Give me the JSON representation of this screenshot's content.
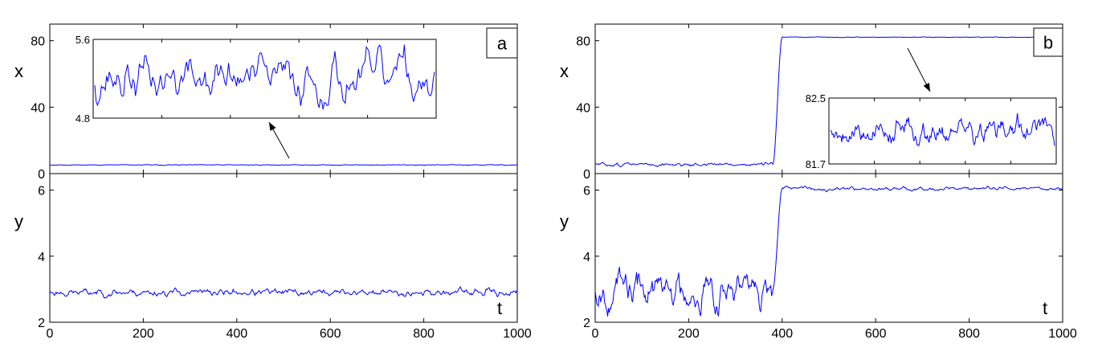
{
  "chart_data": [
    {
      "type": "line",
      "panel": "a",
      "xlim": [
        0,
        1000
      ],
      "x_ticks": [
        0,
        200,
        400,
        600,
        800,
        1000
      ],
      "x_tick_labels": [
        "0",
        "200",
        "400",
        "600",
        "800",
        "1000"
      ],
      "xlabel": "t",
      "grid": false,
      "top": {
        "ylabel": "x",
        "ylim": [
          0,
          90
        ],
        "y_ticks": [
          0,
          40,
          80
        ],
        "y_tick_labels": [
          "0",
          "40",
          "80"
        ],
        "baseline": 5.2,
        "fluctuation": 0.12,
        "seed": 11
      },
      "bottom": {
        "ylabel": "y",
        "ylim": [
          2,
          6.5
        ],
        "y_ticks": [
          2,
          4,
          6
        ],
        "y_tick_labels": [
          "2",
          "4",
          "6"
        ],
        "baseline": 2.9,
        "fluctuation": 0.06,
        "seed": 23
      },
      "inset": {
        "ylim": [
          4.8,
          5.6
        ],
        "y_ticks": [
          4.8,
          5.6
        ],
        "y_tick_labels": [
          "4.8",
          "5.6"
        ],
        "baseline": 5.2,
        "fluctuation": 0.14,
        "seed": 37
      },
      "series_color": "#0000ff"
    },
    {
      "type": "line",
      "panel": "b",
      "xlim": [
        0,
        1000
      ],
      "x_ticks": [
        0,
        200,
        400,
        600,
        800,
        1000
      ],
      "x_tick_labels": [
        "0",
        "200",
        "400",
        "600",
        "800",
        "1000"
      ],
      "xlabel": "t",
      "grid": false,
      "transition_t": [
        380,
        400
      ],
      "top": {
        "ylabel": "x",
        "ylim": [
          0,
          90
        ],
        "y_ticks": [
          0,
          40,
          80
        ],
        "y_tick_labels": [
          "0",
          "40",
          "80"
        ],
        "before": 5.5,
        "after": 82.1,
        "fluctuation_before": 0.6,
        "fluctuation_after": 0.1,
        "seed": 51
      },
      "bottom": {
        "ylabel": "y",
        "ylim": [
          2,
          6.5
        ],
        "y_ticks": [
          2,
          4,
          6
        ],
        "y_tick_labels": [
          "2",
          "4",
          "6"
        ],
        "before": 3.0,
        "after": 6.05,
        "fluctuation_before": 0.3,
        "fluctuation_after": 0.03,
        "seed": 67
      },
      "inset": {
        "ylim": [
          81.7,
          82.5
        ],
        "y_ticks": [
          81.7,
          82.5
        ],
        "y_tick_labels": [
          "81.7",
          "82.5"
        ],
        "baseline": 82.1,
        "fluctuation": 0.09,
        "seed": 79
      },
      "series_color": "#0000ff"
    }
  ]
}
